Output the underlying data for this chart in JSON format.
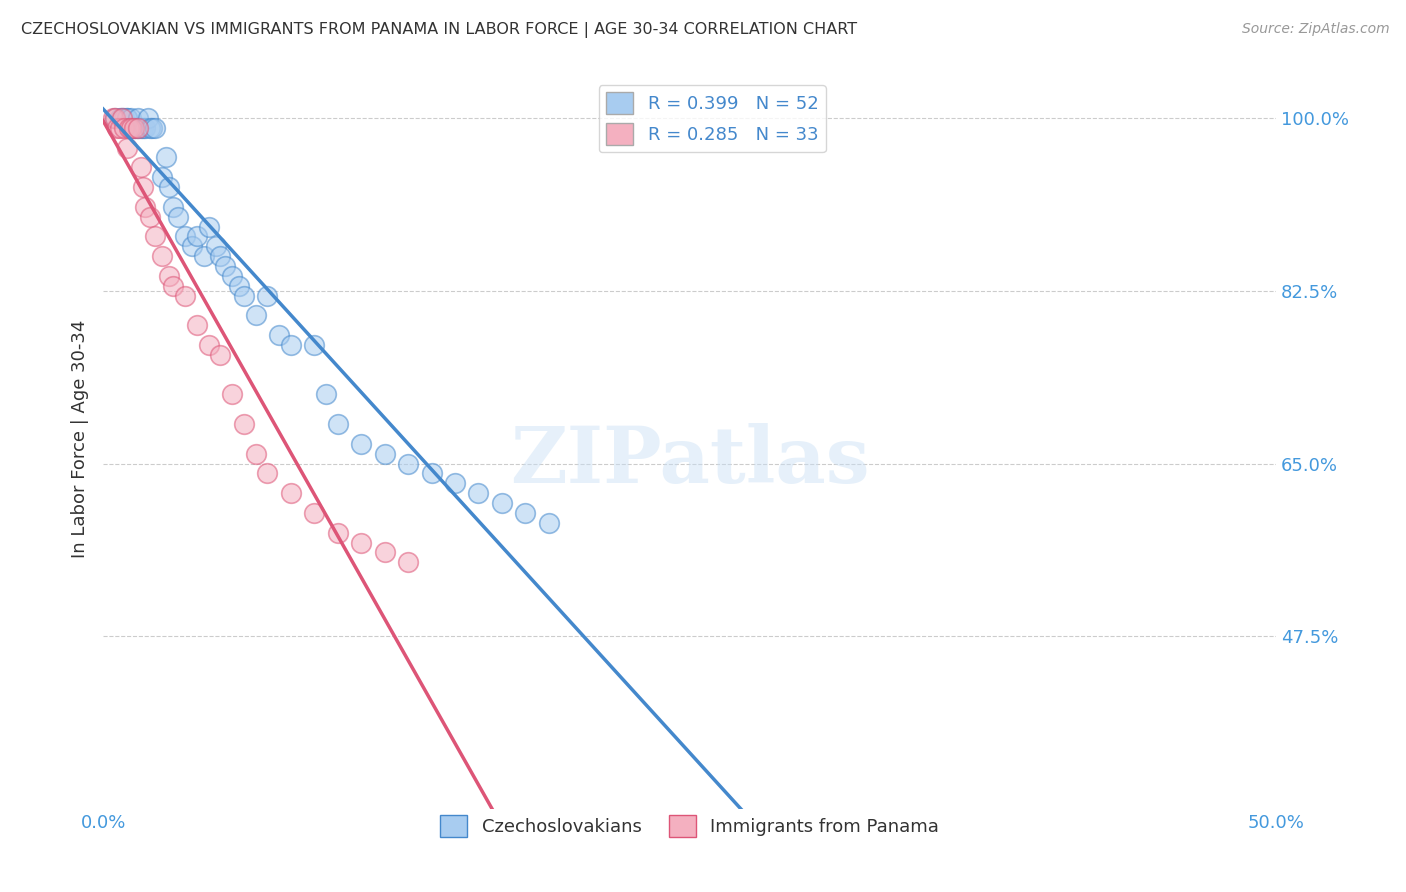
{
  "title": "CZECHOSLOVAKIAN VS IMMIGRANTS FROM PANAMA IN LABOR FORCE | AGE 30-34 CORRELATION CHART",
  "source": "Source: ZipAtlas.com",
  "ylabel": "In Labor Force | Age 30-34",
  "xlim": [
    0.0,
    0.5
  ],
  "ylim": [
    0.3,
    1.05
  ],
  "blue_R": 0.399,
  "blue_N": 52,
  "pink_R": 0.285,
  "pink_N": 33,
  "blue_color": "#A8CCF0",
  "pink_color": "#F4B0C0",
  "blue_line_color": "#4488CC",
  "pink_line_color": "#DD5577",
  "axis_color": "#4499DD",
  "blue_scatter_x": [
    0.005,
    0.007,
    0.008,
    0.009,
    0.01,
    0.01,
    0.011,
    0.012,
    0.012,
    0.013,
    0.014,
    0.015,
    0.015,
    0.016,
    0.017,
    0.018,
    0.019,
    0.02,
    0.021,
    0.022,
    0.025,
    0.027,
    0.028,
    0.03,
    0.032,
    0.035,
    0.038,
    0.04,
    0.043,
    0.045,
    0.048,
    0.05,
    0.052,
    0.055,
    0.058,
    0.06,
    0.065,
    0.07,
    0.075,
    0.08,
    0.09,
    0.095,
    0.1,
    0.11,
    0.12,
    0.13,
    0.14,
    0.15,
    0.16,
    0.17,
    0.18,
    0.19
  ],
  "blue_scatter_y": [
    1.0,
    1.0,
    1.0,
    1.0,
    1.0,
    1.0,
    0.99,
    0.99,
    1.0,
    0.99,
    0.99,
    1.0,
    0.99,
    0.99,
    0.99,
    0.99,
    1.0,
    0.99,
    0.99,
    0.99,
    0.94,
    0.96,
    0.93,
    0.91,
    0.9,
    0.88,
    0.87,
    0.88,
    0.86,
    0.89,
    0.87,
    0.86,
    0.85,
    0.84,
    0.83,
    0.82,
    0.8,
    0.82,
    0.78,
    0.77,
    0.77,
    0.72,
    0.69,
    0.67,
    0.66,
    0.65,
    0.64,
    0.63,
    0.62,
    0.61,
    0.6,
    0.59
  ],
  "pink_scatter_x": [
    0.004,
    0.005,
    0.006,
    0.007,
    0.008,
    0.009,
    0.01,
    0.011,
    0.012,
    0.013,
    0.015,
    0.016,
    0.017,
    0.018,
    0.02,
    0.022,
    0.025,
    0.028,
    0.03,
    0.035,
    0.04,
    0.045,
    0.05,
    0.055,
    0.06,
    0.065,
    0.07,
    0.08,
    0.09,
    0.1,
    0.11,
    0.12,
    0.13
  ],
  "pink_scatter_y": [
    1.0,
    1.0,
    0.99,
    0.99,
    1.0,
    0.99,
    0.97,
    0.99,
    0.99,
    0.99,
    0.99,
    0.95,
    0.93,
    0.91,
    0.9,
    0.88,
    0.86,
    0.84,
    0.83,
    0.82,
    0.79,
    0.77,
    0.76,
    0.72,
    0.69,
    0.66,
    0.64,
    0.62,
    0.6,
    0.58,
    0.57,
    0.56,
    0.55
  ]
}
